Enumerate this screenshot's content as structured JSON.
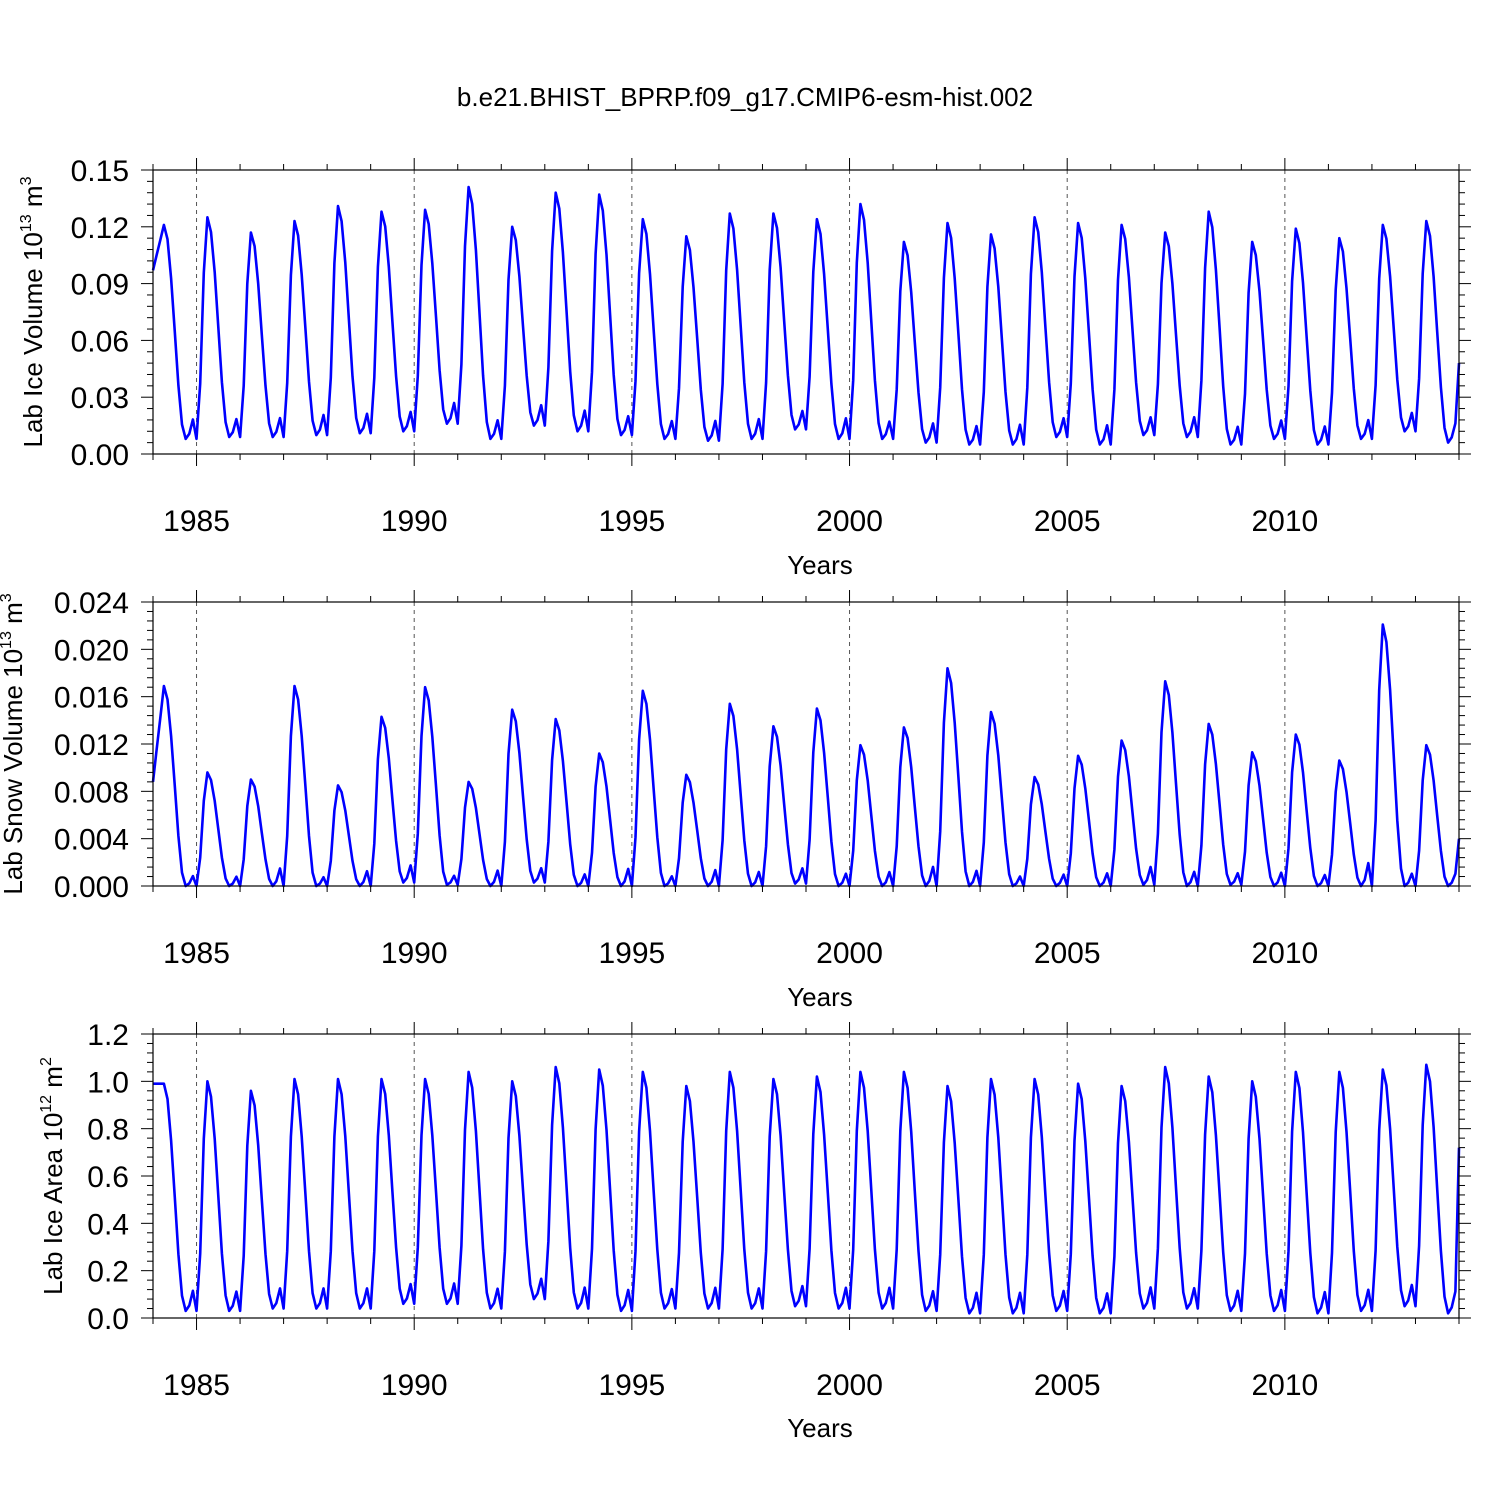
{
  "figure_title": "b.e21.BHIST_BPRP.f09_g17.CMIP6-esm-hist.002",
  "chart_data": [
    {
      "type": "line",
      "title": "b.e21.BHIST_BPRP.f09_g17.CMIP6-esm-hist.002",
      "xlabel": "Years",
      "ylabel": "Lab Ice Volume 10",
      "ylabel_exp": "13",
      "ylabel_unit": " m",
      "ylabel_unit_exp": "3",
      "xlim": [
        1984.0,
        2014.0
      ],
      "ylim": [
        0.0,
        0.15
      ],
      "x_ticks": [
        "1985",
        "1990",
        "1995",
        "2000",
        "2005",
        "2010"
      ],
      "y_ticks": [
        "0.00",
        "0.03",
        "0.06",
        "0.09",
        "0.12",
        "0.15"
      ],
      "vgrid_years": [
        1985,
        1990,
        1995,
        2000,
        2005,
        2010
      ],
      "series_color": "#0000ff",
      "annual_max": [
        0.121,
        0.125,
        0.117,
        0.123,
        0.131,
        0.128,
        0.129,
        0.141,
        0.12,
        0.138,
        0.137,
        0.124,
        0.115,
        0.127,
        0.127,
        0.124,
        0.132,
        0.112,
        0.122,
        0.116,
        0.125,
        0.122,
        0.121,
        0.117,
        0.128,
        0.112,
        0.119,
        0.114,
        0.121,
        0.123
      ],
      "annual_min": [
        0.008,
        0.009,
        0.009,
        0.01,
        0.011,
        0.012,
        0.016,
        0.008,
        0.015,
        0.012,
        0.01,
        0.008,
        0.007,
        0.008,
        0.013,
        0.008,
        0.008,
        0.006,
        0.005,
        0.005,
        0.009,
        0.005,
        0.01,
        0.009,
        0.005,
        0.008,
        0.005,
        0.008,
        0.012,
        0.006
      ],
      "start_value": 0.097,
      "end_value": 0.048
    },
    {
      "type": "line",
      "xlabel": "Years",
      "ylabel": "Lab Snow Volume 10",
      "ylabel_exp": "13",
      "ylabel_unit": " m",
      "ylabel_unit_exp": "3",
      "xlim": [
        1984.0,
        2014.0
      ],
      "ylim": [
        0.0,
        0.024
      ],
      "x_ticks": [
        "1985",
        "1990",
        "1995",
        "2000",
        "2005",
        "2010"
      ],
      "y_ticks": [
        "0.000",
        "0.004",
        "0.008",
        "0.012",
        "0.016",
        "0.020",
        "0.024"
      ],
      "vgrid_years": [
        1985,
        1990,
        1995,
        2000,
        2005,
        2010
      ],
      "series_color": "#0000ff",
      "annual_max": [
        0.0169,
        0.0096,
        0.009,
        0.0169,
        0.0085,
        0.0143,
        0.0168,
        0.0088,
        0.0149,
        0.0141,
        0.0112,
        0.0165,
        0.0094,
        0.0154,
        0.0135,
        0.015,
        0.0119,
        0.0134,
        0.0184,
        0.0147,
        0.0092,
        0.011,
        0.0123,
        0.0173,
        0.0137,
        0.0113,
        0.0128,
        0.0106,
        0.0221,
        0.0119
      ],
      "annual_min": [
        0.0,
        0.0,
        0.0,
        0.0,
        0.0,
        0.0003,
        0.0001,
        0.0,
        0.0003,
        0.0,
        0.0,
        0.0,
        0.0,
        0.0,
        0.0002,
        0.0,
        0.0,
        0.0,
        0.0,
        0.0,
        0.0,
        0.0,
        0.0001,
        0.0,
        0.0001,
        0.0,
        0.0,
        0.0,
        0.0,
        0.0
      ],
      "start_value": 0.0088,
      "end_value": 0.004
    },
    {
      "type": "line",
      "xlabel": "Years",
      "ylabel": "Lab Ice Area 10",
      "ylabel_exp": "12",
      "ylabel_unit": " m",
      "ylabel_unit_exp": "2",
      "xlim": [
        1984.0,
        2014.0
      ],
      "ylim": [
        0.0,
        1.2
      ],
      "x_ticks": [
        "1985",
        "1990",
        "1995",
        "2000",
        "2005",
        "2010"
      ],
      "y_ticks": [
        "0.0",
        "0.2",
        "0.4",
        "0.6",
        "0.8",
        "1.0",
        "1.2"
      ],
      "vgrid_years": [
        1985,
        1990,
        1995,
        2000,
        2005,
        2010
      ],
      "series_color": "#0000ff",
      "annual_max": [
        0.99,
        1.0,
        0.96,
        1.01,
        1.01,
        1.01,
        1.01,
        1.04,
        1.0,
        1.06,
        1.05,
        1.04,
        0.98,
        1.04,
        1.01,
        1.02,
        1.04,
        1.04,
        0.98,
        1.01,
        1.01,
        0.99,
        0.98,
        1.06,
        1.02,
        1.0,
        1.04,
        1.04,
        1.05,
        1.07
      ],
      "annual_min": [
        0.03,
        0.03,
        0.04,
        0.04,
        0.04,
        0.06,
        0.06,
        0.04,
        0.08,
        0.04,
        0.03,
        0.04,
        0.04,
        0.04,
        0.05,
        0.04,
        0.04,
        0.03,
        0.02,
        0.02,
        0.03,
        0.02,
        0.04,
        0.04,
        0.03,
        0.03,
        0.02,
        0.03,
        0.05,
        0.02
      ],
      "start_value": 0.99,
      "end_value": 0.72
    }
  ]
}
